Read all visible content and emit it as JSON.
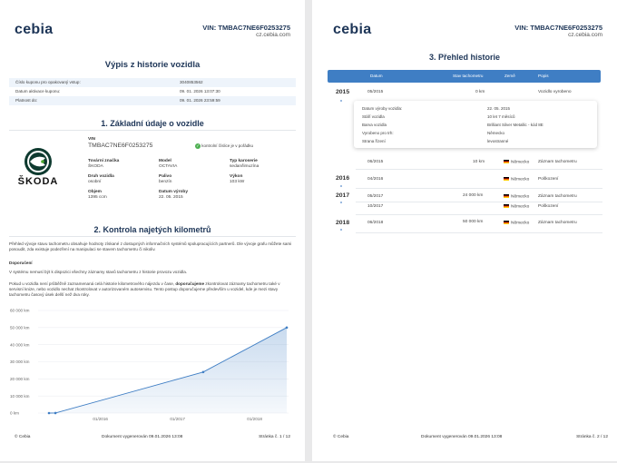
{
  "brand": "cebia",
  "vin_header": "VIN: TMBAC7NE6F0253275",
  "site": "cz.cebia.com",
  "page1": {
    "title": "Výpis z historie vozidla",
    "coupon_rows": [
      {
        "label": "Číslo kuponu pro opakovaný vstup:",
        "value": "3040853562"
      },
      {
        "label": "Datum aktivace kuponu:",
        "value": "09. 01. 2026 13:07:30"
      },
      {
        "label": "Platnost do:",
        "value": "09. 01. 2026 23:59:59"
      }
    ],
    "section1_title": "1. Základní údaje o vozidle",
    "vehicle_logo_text": "ŠKODA",
    "vin_label": "VIN",
    "vin_value": "TMBAC7NE6F0253275",
    "vin_check": "kontrolní číslice je v pořádku",
    "fields": [
      {
        "label": "Tovární značka",
        "value": "ŠKODA"
      },
      {
        "label": "Model",
        "value": "OCTAVIA"
      },
      {
        "label": "Typ karoserie",
        "value": "sedan/limuzína"
      },
      {
        "label": "Druh vozidla",
        "value": "osobní"
      },
      {
        "label": "Palivo",
        "value": "benzín"
      },
      {
        "label": "Výkon",
        "value": "103 kW"
      },
      {
        "label": "Objem",
        "value": "1395 ccm"
      },
      {
        "label": "Datum výroby",
        "value": "22. 05. 2015"
      }
    ],
    "section2_title": "2. Kontrola najetých kilometrů",
    "intro_text": "Přehled vývoje stavu tachometru obsahuje hodnoty získané z dostupných informačních systémů spolupracujících partnerů. Dle vývoje grafu můžete sami posoudit, zda existuje podezření na manipulaci se stavem tachometru či nikoliv.",
    "recommend_heading": "Doporučení",
    "recommend_text": "V systému nemusí být k dispozici všechny záznamy stavů tachometru z historie provozu vozidla.",
    "advice_1": "Pokud u vozidla není průběžně zaznamenaná celá historie kilometrového nájezdu v čase, ",
    "advice_bold": "doporučujeme",
    "advice_2": " zkontrolovat záznamy tachometru také v servisní knize, nebo vozidlo nechat zkontrolovat v autorizovaném autoservisu. Tento postup doporučujeme především u vozidel, kde je mezi stavy tachometru časový úsek delší než dva roky.",
    "footer_left": "© Cebia",
    "footer_center": "Dokument vygenerován 09.01.2026 13:08",
    "footer_right": "Stránka č. 1 / 12"
  },
  "chart_data": {
    "type": "area",
    "title": "",
    "xlabel": "",
    "ylabel": "",
    "x_tick_labels": [
      "01/2016",
      "01/2017",
      "01/2018"
    ],
    "y_tick_labels": [
      "0 km",
      "10 000 km",
      "20 000 km",
      "30 000 km",
      "40 000 km",
      "50 000 km",
      "60 000 km"
    ],
    "ylim": [
      0,
      60000
    ],
    "x": [
      "2015-05",
      "2015-06",
      "2017-05",
      "2018-06"
    ],
    "values": [
      0,
      10,
      24000,
      50000
    ],
    "color": "#3f7ec4",
    "grid": true
  },
  "page2": {
    "title": "3. Přehled historie",
    "headers": [
      "Datum",
      "Stav tachometru",
      "Země",
      "Popis"
    ],
    "rows": [
      {
        "year": "2015",
        "date": "05/2015",
        "km": "0 km",
        "country": "",
        "desc": "Vozidlo vyrobeno"
      },
      {
        "year": "",
        "date": "06/2015",
        "km": "10 km",
        "country": "Německo",
        "desc": "Záznam tachometru"
      },
      {
        "year": "2016",
        "date": "04/2016",
        "km": "",
        "country": "Německo",
        "desc": "Poškození"
      },
      {
        "year": "2017",
        "date": "05/2017",
        "km": "24 000 km",
        "country": "Německo",
        "desc": "Záznam tachometru"
      },
      {
        "year": "",
        "date": "10/2017",
        "km": "",
        "country": "Německo",
        "desc": "Poškození"
      },
      {
        "year": "2018",
        "date": "06/2018",
        "km": "50 000 km",
        "country": "Německo",
        "desc": "Záznam tachometru"
      }
    ],
    "detail": [
      {
        "label": "Datum výroby vozidla:",
        "value": "22. 05. 2015"
      },
      {
        "label": "Stáří vozidla",
        "value": "10 let 7 měsíců"
      },
      {
        "label": "Barva vozidla",
        "value": "Brilliant Silver Metallic - kód 8E"
      },
      {
        "label": "Vyrobeno pro trh:",
        "value": "Německo"
      },
      {
        "label": "Strana řízení",
        "value": "levostranné"
      }
    ],
    "footer_left": "© Cebia",
    "footer_center": "Dokument vygenerován 09.01.2026 13:08",
    "footer_right": "Stránka č. 2 / 12"
  }
}
